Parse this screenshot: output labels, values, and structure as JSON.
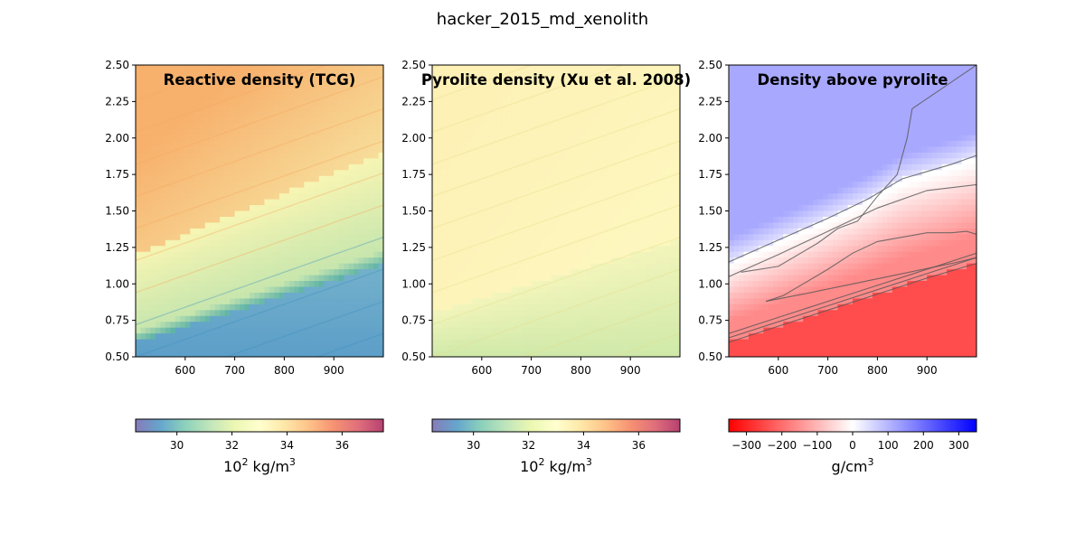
{
  "figure": {
    "title": "hacker_2015_md_xenolith"
  },
  "colors": {
    "reactive_low": "#5c9ec8",
    "reactive_mid": "#f7f5b3",
    "reactive_high": "#f7b16d",
    "pyrolite_low": "#cfe9a9",
    "pyrolite_high": "#fdf1b6",
    "below": "#ff4c4c",
    "neutral": "#ffffff",
    "above": "#a8a8ff",
    "contour": "#555555"
  },
  "chart_data": [
    {
      "type": "heatmap",
      "title": "Reactive density (TCG)",
      "xlim": [
        500,
        1000
      ],
      "ylim": [
        0.5,
        2.5
      ],
      "xticks": [
        "600",
        "700",
        "800",
        "900"
      ],
      "yticks": [
        "0.50",
        "0.75",
        "1.00",
        "1.25",
        "1.50",
        "1.75",
        "2.00",
        "2.25",
        "2.50"
      ],
      "colorbar": {
        "label_base": "10",
        "label_exp": "2",
        "label_unit": " kg/m",
        "label_unit_exp": "3",
        "cmap": "Spectral_r",
        "range": [
          28.5,
          37.5
        ],
        "ticks": [
          "30",
          "32",
          "34",
          "36"
        ]
      },
      "transition_boundary": {
        "x": [
          500,
          1000
        ],
        "y": [
          1.2,
          1.9
        ]
      },
      "low_plateau_boundary": {
        "x": [
          500,
          1000
        ],
        "y": [
          0.6,
          1.13
        ]
      }
    },
    {
      "type": "heatmap",
      "title": "Pyrolite density (Xu et al. 2008)",
      "xlim": [
        500,
        1000
      ],
      "ylim": [
        0.5,
        2.5
      ],
      "xticks": [
        "600",
        "700",
        "800",
        "900"
      ],
      "yticks": [
        "0.50",
        "0.75",
        "1.00",
        "1.25",
        "1.50",
        "1.75",
        "2.00",
        "2.25",
        "2.50"
      ],
      "colorbar": {
        "label_base": "10",
        "label_exp": "2",
        "label_unit": " kg/m",
        "label_unit_exp": "3",
        "cmap": "Spectral_r",
        "range": [
          28.5,
          37.5
        ],
        "ticks": [
          "30",
          "32",
          "34",
          "36"
        ]
      },
      "transition_boundary": {
        "x": [
          500,
          1000
        ],
        "y": [
          0.8,
          1.3
        ]
      }
    },
    {
      "type": "heatmap",
      "title": "Density above pyrolite",
      "xlim": [
        500,
        1000
      ],
      "ylim": [
        0.5,
        2.5
      ],
      "xticks": [
        "600",
        "700",
        "800",
        "900"
      ],
      "yticks": [
        "0.50",
        "0.75",
        "1.00",
        "1.25",
        "1.50",
        "1.75",
        "2.00",
        "2.25",
        "2.50"
      ],
      "colorbar": {
        "label_unit": "g/cm",
        "label_unit_exp": "3",
        "cmap": "bwr_r",
        "range": [
          -350,
          350
        ],
        "ticks": [
          "−300",
          "−200",
          "−100",
          "0",
          "100",
          "200",
          "300"
        ]
      },
      "contours": [
        {
          "x": [
            500,
            600,
            700,
            780,
            820,
            840,
            850,
            950,
            1000
          ],
          "y": [
            1.15,
            1.3,
            1.45,
            1.58,
            1.66,
            1.7,
            1.72,
            1.82,
            1.88
          ]
        },
        {
          "x": [
            500,
            600,
            700,
            800,
            900,
            1000
          ],
          "y": [
            1.05,
            1.2,
            1.36,
            1.52,
            1.64,
            1.68
          ]
        },
        {
          "x": [
            500,
            600,
            700,
            800,
            900,
            1000
          ],
          "y": [
            0.6,
            0.71,
            0.82,
            0.93,
            1.04,
            1.14
          ]
        },
        {
          "x": [
            500,
            600,
            700,
            800,
            900,
            1000
          ],
          "y": [
            0.63,
            0.74,
            0.85,
            0.96,
            1.07,
            1.18
          ]
        },
        {
          "x": [
            500,
            600,
            700,
            800,
            900,
            1000
          ],
          "y": [
            0.66,
            0.77,
            0.88,
            0.99,
            1.1,
            1.21
          ]
        },
        {
          "x": [
            575,
            610,
            650,
            700,
            750,
            800,
            850,
            900,
            950,
            980,
            1000
          ],
          "y": [
            0.88,
            0.92,
            1.0,
            1.1,
            1.21,
            1.29,
            1.32,
            1.35,
            1.35,
            1.36,
            1.34
          ]
        },
        {
          "x": [
            575,
            650,
            750,
            850,
            950,
            1000
          ],
          "y": [
            0.88,
            0.93,
            1.0,
            1.07,
            1.14,
            1.18
          ]
        },
        {
          "x": [
            525,
            600,
            680,
            700,
            720,
            760,
            800,
            840,
            860,
            870,
            1000
          ],
          "y": [
            1.08,
            1.12,
            1.28,
            1.33,
            1.38,
            1.43,
            1.6,
            1.75,
            2.0,
            2.2,
            2.5
          ]
        }
      ]
    }
  ]
}
